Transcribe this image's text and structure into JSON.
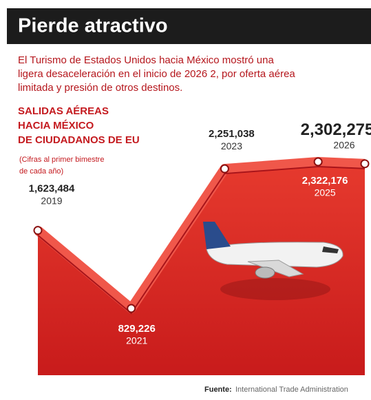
{
  "chart_data": {
    "type": "area",
    "title": "Pierde atractivo",
    "subtitle": [
      "El Turismo de Estados Unidos hacia México mostró una",
      "ligera desaceleración en el inicio de 2026 2, por oferta aérea",
      "limitada y presión de otros destinos."
    ],
    "label": [
      "SALIDAS AÉREAS",
      "HACIA MÉXICO",
      "DE CIUDADANOS DE EU"
    ],
    "note": [
      "(Cifras al primer bimestre",
      "de cada año)"
    ],
    "x": [
      2019,
      2021,
      2023,
      2025,
      2026
    ],
    "values": [
      1623484,
      829226,
      2251038,
      2322176,
      2302275
    ],
    "value_labels": [
      "1,623,484",
      "829,226",
      "2,251,038",
      "2,322,176",
      "2,302,275"
    ],
    "color": "#e12a22",
    "source_label": "Fuente:",
    "source": "International Trade Administration"
  }
}
